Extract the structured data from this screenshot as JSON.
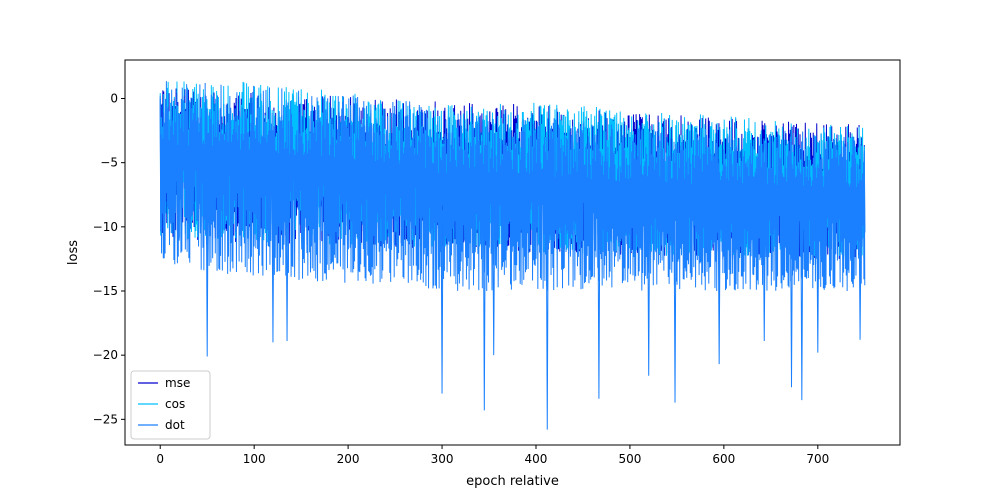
{
  "chart_data": {
    "type": "line",
    "title": "",
    "xlabel": "epoch relative",
    "ylabel": "loss",
    "xlim": [
      -37.5,
      787.5
    ],
    "ylim": [
      -27,
      3
    ],
    "x_ticks": [
      0,
      100,
      200,
      300,
      400,
      500,
      600,
      700
    ],
    "y_ticks": [
      0,
      -5,
      -10,
      -15,
      -20,
      -25
    ],
    "grid": false,
    "legend_position": "lower-left",
    "x_range": [
      0,
      750
    ],
    "points_per_series": 1600,
    "series": [
      {
        "name": "mse",
        "color": "#0000cd",
        "upper_envelope": [
          [
            0,
            1.0
          ],
          [
            100,
            0.5
          ],
          [
            250,
            0.0
          ],
          [
            400,
            -0.5
          ],
          [
            600,
            -1.5
          ],
          [
            750,
            -2.0
          ]
        ],
        "lower_envelope": [
          [
            0,
            -11.0
          ],
          [
            200,
            -11.5
          ],
          [
            400,
            -12.0
          ],
          [
            600,
            -12.5
          ],
          [
            750,
            -12.5
          ]
        ],
        "spike_minima": [],
        "seed": 11
      },
      {
        "name": "cos",
        "color": "#00bfff",
        "upper_envelope": [
          [
            0,
            1.5
          ],
          [
            100,
            1.3
          ],
          [
            200,
            0.5
          ],
          [
            300,
            -0.5
          ],
          [
            400,
            -0.3
          ],
          [
            450,
            -0.5
          ],
          [
            500,
            -1.0
          ],
          [
            600,
            -1.3
          ],
          [
            700,
            -2.0
          ],
          [
            750,
            -2.0
          ]
        ],
        "lower_envelope": [
          [
            0,
            -11.0
          ],
          [
            200,
            -11.5
          ],
          [
            400,
            -12.0
          ],
          [
            600,
            -12.5
          ],
          [
            750,
            -12.5
          ]
        ],
        "spike_minima": [],
        "seed": 29
      },
      {
        "name": "dot",
        "color": "#1a80ff",
        "upper_envelope": [
          [
            0,
            1.5
          ],
          [
            50,
            1.2
          ],
          [
            100,
            1.0
          ],
          [
            200,
            0.3
          ],
          [
            260,
            0.0
          ],
          [
            300,
            -1.0
          ],
          [
            400,
            -1.3
          ],
          [
            500,
            -2.0
          ],
          [
            600,
            -2.3
          ],
          [
            700,
            -2.6
          ],
          [
            750,
            -2.8
          ]
        ],
        "lower_envelope": [
          [
            0,
            -13.0
          ],
          [
            100,
            -14.0
          ],
          [
            200,
            -14.5
          ],
          [
            300,
            -15.0
          ],
          [
            400,
            -15.0
          ],
          [
            500,
            -15.0
          ],
          [
            600,
            -15.0
          ],
          [
            700,
            -15.0
          ],
          [
            750,
            -15.0
          ]
        ],
        "spike_minima": [
          [
            50,
            -20.1
          ],
          [
            120,
            -19.0
          ],
          [
            135,
            -18.9
          ],
          [
            300,
            -23.0
          ],
          [
            345,
            -24.3
          ],
          [
            355,
            -20.0
          ],
          [
            412,
            -25.8
          ],
          [
            467,
            -23.4
          ],
          [
            520,
            -21.6
          ],
          [
            548,
            -23.7
          ],
          [
            595,
            -20.7
          ],
          [
            643,
            -18.9
          ],
          [
            672,
            -22.5
          ],
          [
            683,
            -23.5
          ],
          [
            700,
            -19.8
          ],
          [
            745,
            -18.8
          ]
        ],
        "seed": 57
      }
    ]
  }
}
